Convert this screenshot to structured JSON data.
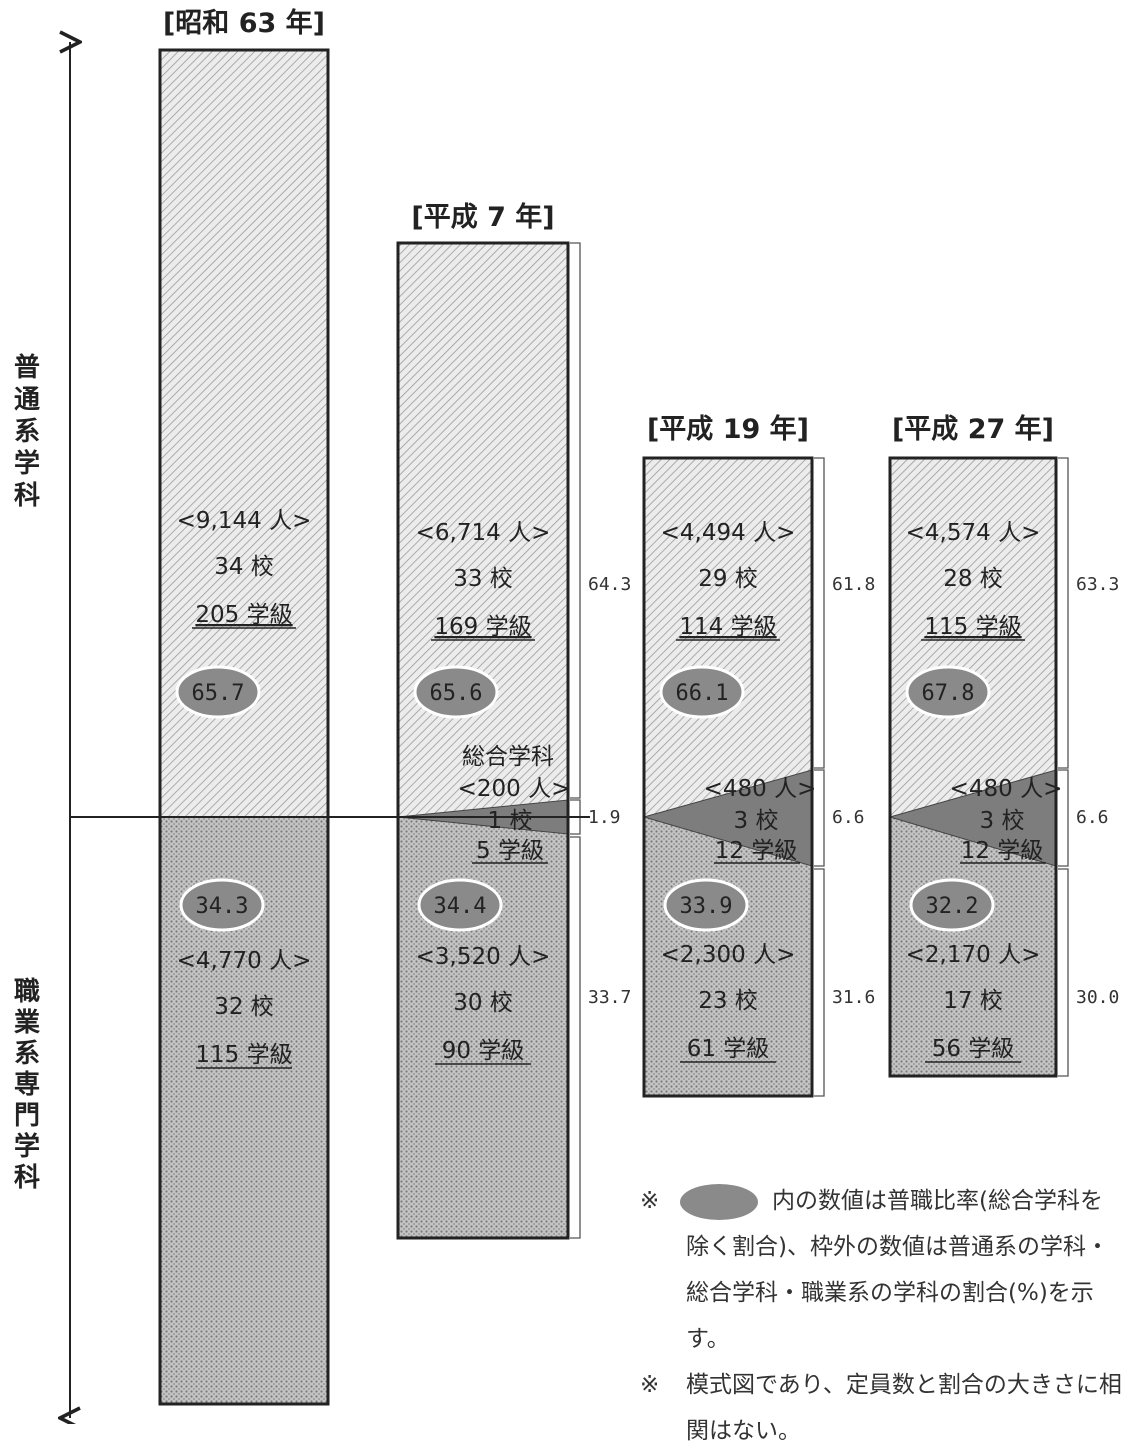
{
  "chart_data": {
    "type": "bar",
    "ylabel_top": "普通系学科",
    "ylabel_bottom": "職業系専門学科",
    "categories": [
      "[昭和 63 年]",
      "[平成 7 年]",
      "[平成 19 年]",
      "[平成 27 年]"
    ],
    "bars": [
      {
        "title": "[昭和 63 年]",
        "general": {
          "students": "<9,144 人>",
          "schools": "34 校",
          "classes": "205 学級"
        },
        "general_ratio": "65.7",
        "integrated": null,
        "vocational": {
          "students": "<4,770 人>",
          "schools": "32 校",
          "classes": "115 学級"
        },
        "vocational_ratio": "34.3",
        "share_general": "",
        "share_integrated": "",
        "share_vocational": ""
      },
      {
        "title": "[平成 7 年]",
        "general": {
          "students": "<6,714 人>",
          "schools": "33 校",
          "classes": "169 学級"
        },
        "general_ratio": "65.6",
        "integrated": {
          "label": "総合学科",
          "students": "<200 人>",
          "schools": "1 校",
          "classes": "5 学級"
        },
        "vocational": {
          "students": "<3,520 人>",
          "schools": "30 校",
          "classes": "90 学級"
        },
        "vocational_ratio": "34.4",
        "share_general": "64.3",
        "share_integrated": "1.9",
        "share_vocational": "33.7"
      },
      {
        "title": "[平成 19 年]",
        "general": {
          "students": "<4,494 人>",
          "schools": "29 校",
          "classes": "114 学級"
        },
        "general_ratio": "66.1",
        "integrated": {
          "label": "",
          "students": "<480 人>",
          "schools": "3 校",
          "classes": "12 学級"
        },
        "vocational": {
          "students": "<2,300 人>",
          "schools": "23 校",
          "classes": "61 学級"
        },
        "vocational_ratio": "33.9",
        "share_general": "61.8",
        "share_integrated": "6.6",
        "share_vocational": "31.6"
      },
      {
        "title": "[平成 27 年]",
        "general": {
          "students": "<4,574 人>",
          "schools": "28 校",
          "classes": "115 学級"
        },
        "general_ratio": "67.8",
        "integrated": {
          "label": "",
          "students": "<480 人>",
          "schools": "3 校",
          "classes": "12 学級"
        },
        "vocational": {
          "students": "<2,170 人>",
          "schools": "17 校",
          "classes": "56 学級"
        },
        "vocational_ratio": "32.2",
        "share_general": "63.3",
        "share_integrated": "6.6",
        "share_vocational": "30.0"
      }
    ],
    "general_values": [
      9144,
      6714,
      4494,
      4574
    ],
    "integrated_values": [
      0,
      200,
      480,
      480
    ],
    "vocational_values": [
      4770,
      3520,
      2300,
      2170
    ],
    "colors": {
      "general": "#e4e4e4",
      "vocational": "#b9b9b9",
      "integrated": "#7d7d7d",
      "oval": "#8a8a8a"
    }
  },
  "notes": {
    "mark": "※",
    "note1": "内の数値は普職比率(総合学科を除く割合)、枠外の数値は普通系の学科・総合学科・職業系の学科の割合(%)を示す。",
    "note2": "模式図であり、定員数と割合の大きさに相関はない。"
  }
}
